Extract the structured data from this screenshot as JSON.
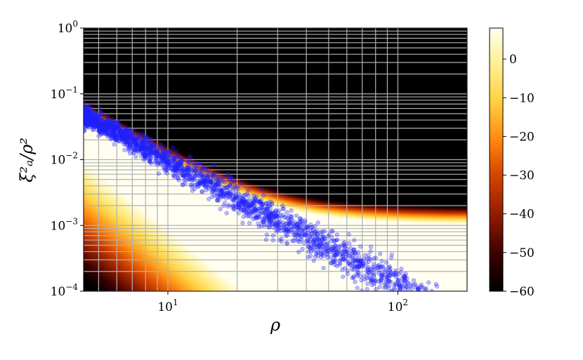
{
  "chart_data": {
    "type": "heatmap",
    "title": "",
    "xlabel": "ρ",
    "ylabel": "ξ²ₐ/ρ²",
    "xscale": "log",
    "yscale": "log",
    "xlim": [
      4.3,
      200
    ],
    "ylim": [
      0.0001,
      1
    ],
    "grid": true,
    "x_ticks": [
      {
        "value": 10,
        "base": "10",
        "exp": "1"
      },
      {
        "value": 100,
        "base": "10",
        "exp": "2"
      }
    ],
    "y_ticks": [
      {
        "value": 1,
        "base": "10",
        "exp": "0"
      },
      {
        "value": 0.1,
        "base": "10",
        "exp": "−1"
      },
      {
        "value": 0.01,
        "base": "10",
        "exp": "−2"
      },
      {
        "value": 0.001,
        "base": "10",
        "exp": "−3"
      },
      {
        "value": 0.0001,
        "base": "10",
        "exp": "−4"
      }
    ],
    "heatmap": {
      "description_free": true,
      "model_upper": {
        "c": 0.8,
        "floor": 0.00105,
        "power": 2
      },
      "model_lower": {
        "c": 0.6,
        "power": 2.85
      },
      "colorscale": [
        "#000000",
        "#3a0000",
        "#8b1a00",
        "#d44400",
        "#ff8a10",
        "#ffd040",
        "#fff090",
        "#fffef0"
      ]
    },
    "colorbar": {
      "range": [
        -60,
        8
      ],
      "ticks": [
        {
          "value": 0,
          "label": "0"
        },
        {
          "value": -10,
          "label": "−10"
        },
        {
          "value": -20,
          "label": "−20"
        },
        {
          "value": -30,
          "label": "−30"
        },
        {
          "value": -40,
          "label": "−40"
        },
        {
          "value": -50,
          "label": "−50"
        },
        {
          "value": -60,
          "label": "−60"
        }
      ]
    },
    "series": [
      {
        "type": "scatter",
        "color": "#2020ff",
        "trend": {
          "a": 0.055,
          "k": -1.9
        },
        "x_range": [
          4.3,
          150
        ],
        "n_points": 2400
      }
    ]
  }
}
